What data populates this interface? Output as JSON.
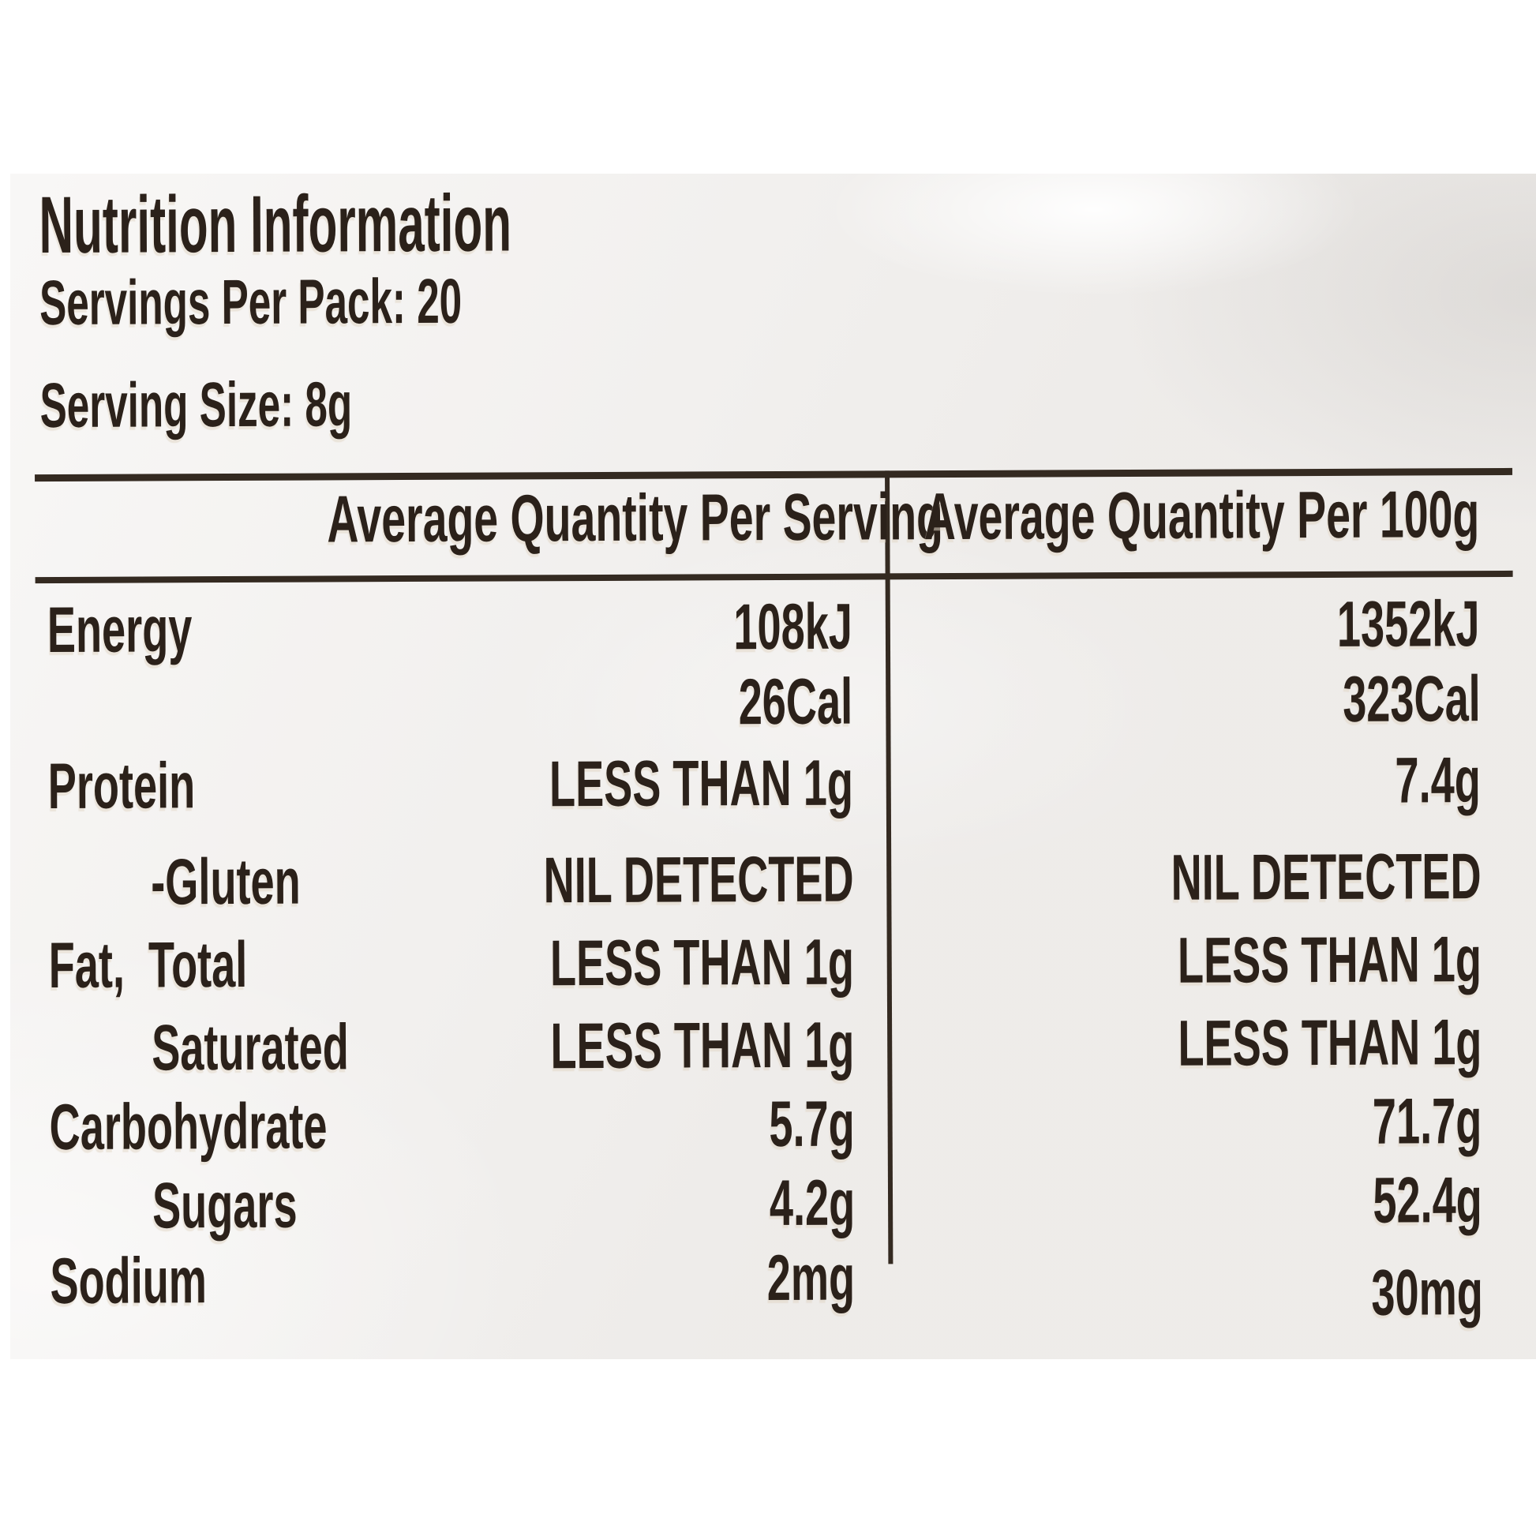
{
  "label": {
    "title": "Nutrition Information",
    "servings_per_pack": "Servings Per Pack: 20",
    "serving_size": "Serving Size: 8g"
  },
  "table": {
    "columns": [
      "Average Quantity Per Serving",
      "Average Quantity Per 100g"
    ],
    "rows": [
      {
        "nutrient": "Energy",
        "per_serving": "108kJ",
        "per_100g": "1352kJ",
        "indent": false
      },
      {
        "nutrient": "",
        "per_serving": "26Cal",
        "per_100g": "323Cal",
        "indent": false
      },
      {
        "nutrient": "Protein",
        "per_serving": "LESS THAN 1g",
        "per_100g": "7.4g",
        "indent": false
      },
      {
        "nutrient": "-Gluten",
        "per_serving": "NIL DETECTED",
        "per_100g": "NIL DETECTED",
        "indent": true
      },
      {
        "nutrient": "Fat,  Total",
        "per_serving": "LESS THAN 1g",
        "per_100g": "LESS THAN 1g",
        "indent": false
      },
      {
        "nutrient": "Saturated",
        "per_serving": "LESS THAN 1g",
        "per_100g": "LESS THAN 1g",
        "indent": true
      },
      {
        "nutrient": "Carbohydrate",
        "per_serving": "5.7g",
        "per_100g": "71.7g",
        "indent": false
      },
      {
        "nutrient": "Sugars",
        "per_serving": "4.2g",
        "per_100g": "52.4g",
        "indent": true
      },
      {
        "nutrient": "Sodium",
        "per_serving": "2mg",
        "per_100g": "30mg",
        "indent": false
      }
    ]
  },
  "colors": {
    "ink": "#2b211a",
    "panel_background": "#f4f2f0"
  }
}
